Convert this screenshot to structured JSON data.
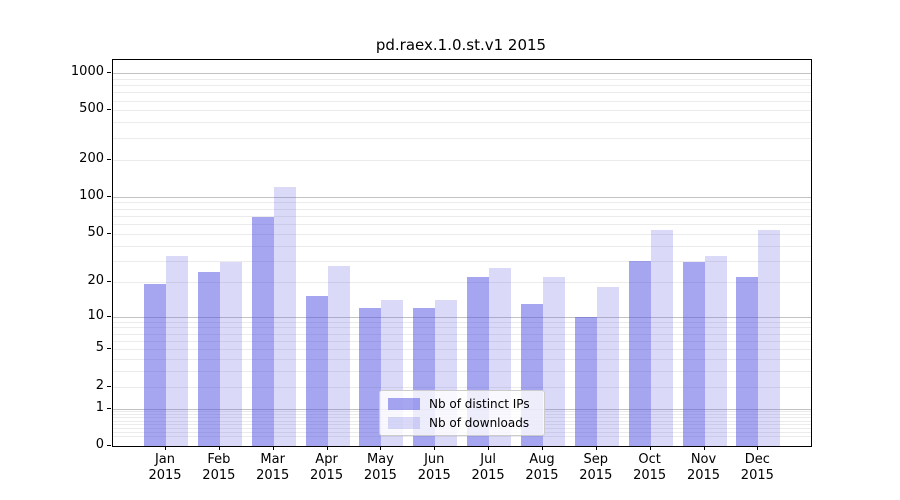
{
  "chart_data": {
    "type": "bar",
    "title": "pd.raex.1.0.st.v1 2015",
    "categories": [
      "Jan 2015",
      "Feb 2015",
      "Mar 2015",
      "Apr 2015",
      "May 2015",
      "Jun 2015",
      "Jul 2015",
      "Aug 2015",
      "Sep 2015",
      "Oct 2015",
      "Nov 2015",
      "Dec 2015"
    ],
    "x_tick_months": [
      "Jan",
      "Feb",
      "Mar",
      "Apr",
      "May",
      "Jun",
      "Jul",
      "Aug",
      "Sep",
      "Oct",
      "Nov",
      "Dec"
    ],
    "x_tick_year": "2015",
    "series": [
      {
        "name": "Nb of distinct IPs",
        "color": "rgba(77,77,225,0.5)",
        "values": [
          19,
          24,
          68,
          15,
          12,
          12,
          22,
          13,
          10,
          30,
          29,
          22
        ]
      },
      {
        "name": "Nb of downloads",
        "color": "rgba(107,107,227,0.25)",
        "values": [
          33,
          29,
          120,
          27,
          14,
          14,
          26,
          22,
          18,
          54,
          33,
          54
        ]
      }
    ],
    "xlabel": "",
    "ylabel": "",
    "y_axis": {
      "scale": "log10(1+x)",
      "tick_labels": [
        0,
        1,
        2,
        5,
        10,
        20,
        50,
        100,
        200,
        500,
        1000
      ],
      "top_value": 1250
    },
    "gridlines": {
      "major": [
        1,
        10,
        100,
        1000
      ],
      "minor": [
        0.2,
        0.3,
        0.4,
        0.5,
        0.6,
        0.7,
        0.8,
        0.9,
        2,
        3,
        4,
        5,
        6,
        7,
        8,
        9,
        20,
        30,
        40,
        50,
        60,
        70,
        80,
        90,
        200,
        300,
        400,
        500,
        600,
        700,
        800,
        900
      ]
    },
    "grid": true,
    "legend_position": "bottom-center"
  },
  "colors": {
    "major_gridline": "#c2c2c2",
    "minor_gridline": "#ebebeb",
    "axis": "#000000",
    "background": "#ffffff"
  }
}
